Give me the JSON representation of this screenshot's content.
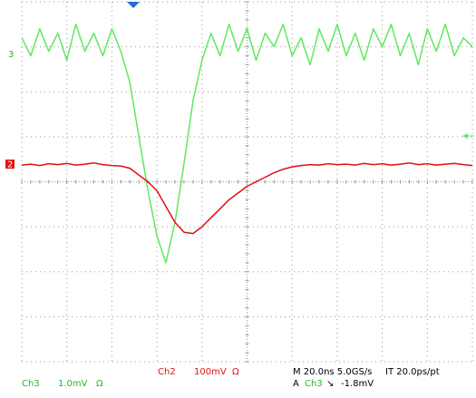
{
  "chart_data": {
    "type": "line",
    "x": [
      0,
      0.2,
      0.4,
      0.6,
      0.8,
      1,
      1.2,
      1.4,
      1.6,
      1.8,
      2,
      2.2,
      2.4,
      2.6,
      2.8,
      3,
      3.2,
      3.4,
      3.6,
      3.8,
      4,
      4.2,
      4.4,
      4.6,
      4.8,
      5,
      5.2,
      5.4,
      5.6,
      5.8,
      6,
      6.2,
      6.4,
      6.6,
      6.8,
      7,
      7.2,
      7.4,
      7.6,
      7.8,
      8,
      8.2,
      8.4,
      8.6,
      8.8,
      9,
      9.2,
      9.4,
      9.6,
      9.8,
      10
    ],
    "series": [
      {
        "name": "Ch3",
        "color": "#5fe85f",
        "values": [
          3.2,
          2.8,
          3.4,
          2.9,
          3.3,
          2.7,
          3.5,
          2.9,
          3.3,
          2.8,
          3.4,
          2.9,
          2.2,
          1.0,
          -0.2,
          -1.2,
          -1.8,
          -0.9,
          0.4,
          1.8,
          2.7,
          3.3,
          2.8,
          3.5,
          2.9,
          3.4,
          2.7,
          3.3,
          3.0,
          3.5,
          2.8,
          3.2,
          2.6,
          3.4,
          2.9,
          3.5,
          2.8,
          3.3,
          2.7,
          3.4,
          3.0,
          3.5,
          2.8,
          3.3,
          2.6,
          3.4,
          2.9,
          3.5,
          2.8,
          3.2,
          3.0
        ]
      },
      {
        "name": "Ch2",
        "color": "#e01010",
        "values": [
          0.37,
          0.39,
          0.36,
          0.4,
          0.38,
          0.41,
          0.37,
          0.39,
          0.42,
          0.38,
          0.36,
          0.35,
          0.3,
          0.15,
          0.0,
          -0.2,
          -0.55,
          -0.9,
          -1.12,
          -1.15,
          -1.0,
          -0.8,
          -0.6,
          -0.4,
          -0.25,
          -0.1,
          0.0,
          0.1,
          0.2,
          0.28,
          0.33,
          0.36,
          0.38,
          0.37,
          0.4,
          0.38,
          0.39,
          0.37,
          0.41,
          0.38,
          0.4,
          0.37,
          0.39,
          0.42,
          0.38,
          0.4,
          0.37,
          0.39,
          0.41,
          0.38,
          0.36
        ]
      }
    ],
    "xlim": [
      0,
      10
    ],
    "ylim": [
      -4,
      4
    ],
    "grid": true
  },
  "markers": {
    "ch3": "3",
    "ch2": "2"
  },
  "readout": {
    "ch3": {
      "label": "Ch3",
      "scale": "1.0mV",
      "coupling": "Ω"
    },
    "ch2": {
      "label": "Ch2",
      "scale": "100mV",
      "coupling": "Ω"
    },
    "timebase": "M 20.0ns 5.0GS/s",
    "interval": "IT 20.0ps/pt",
    "trigger": {
      "mode": "A",
      "source": "Ch3",
      "slope": "↘",
      "level": "-1.8mV"
    }
  }
}
